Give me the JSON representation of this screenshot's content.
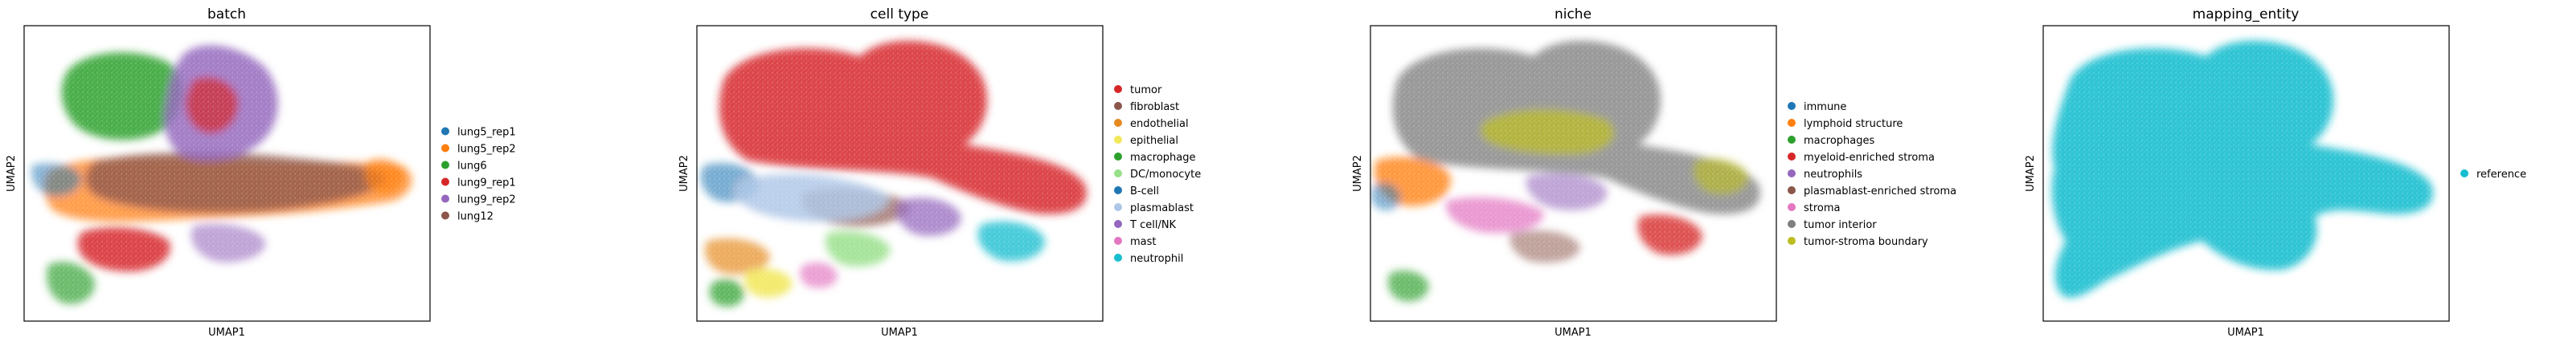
{
  "figure": {
    "panels": [
      {
        "title": "batch",
        "xlabel": "UMAP1",
        "ylabel": "UMAP2",
        "legend": [
          {
            "label": "lung5_rep1",
            "color": "#1f77b4"
          },
          {
            "label": "lung5_rep2",
            "color": "#ff7f0e"
          },
          {
            "label": "lung6",
            "color": "#2ca02c"
          },
          {
            "label": "lung9_rep1",
            "color": "#d62728"
          },
          {
            "label": "lung9_rep2",
            "color": "#9467bd"
          },
          {
            "label": "lung12",
            "color": "#8c564b"
          }
        ]
      },
      {
        "title": "cell type",
        "xlabel": "UMAP1",
        "ylabel": "UMAP2",
        "legend": [
          {
            "label": "tumor",
            "color": "#d62728"
          },
          {
            "label": "fibroblast",
            "color": "#8c564b"
          },
          {
            "label": "endothelial",
            "color": "#e6891f"
          },
          {
            "label": "epithelial",
            "color": "#f2e85c"
          },
          {
            "label": "macrophage",
            "color": "#2ca02c"
          },
          {
            "label": "DC/monocyte",
            "color": "#98df8a"
          },
          {
            "label": "B-cell",
            "color": "#1f77b4"
          },
          {
            "label": "plasmablast",
            "color": "#aec7e8"
          },
          {
            "label": "T cell/NK",
            "color": "#9467bd"
          },
          {
            "label": "mast",
            "color": "#e377c2"
          },
          {
            "label": "neutrophil",
            "color": "#17becf"
          }
        ]
      },
      {
        "title": "niche",
        "xlabel": "UMAP1",
        "ylabel": "UMAP2",
        "legend": [
          {
            "label": "immune",
            "color": "#1f77b4"
          },
          {
            "label": "lymphoid structure",
            "color": "#ff7f0e"
          },
          {
            "label": "macrophages",
            "color": "#2ca02c"
          },
          {
            "label": "myeloid-enriched stroma",
            "color": "#d62728"
          },
          {
            "label": "neutrophils",
            "color": "#9467bd"
          },
          {
            "label": "plasmablast-enriched stroma",
            "color": "#8c564b"
          },
          {
            "label": "stroma",
            "color": "#e377c2"
          },
          {
            "label": "tumor interior",
            "color": "#7f7f7f"
          },
          {
            "label": "tumor-stroma boundary",
            "color": "#bcbd22"
          }
        ]
      },
      {
        "title": "mapping_entity",
        "xlabel": "UMAP1",
        "ylabel": "UMAP2",
        "legend": [
          {
            "label": "reference",
            "color": "#17becf"
          }
        ]
      }
    ]
  },
  "chart_data": [
    {
      "type": "scatter",
      "title": "batch",
      "xlabel": "UMAP1",
      "ylabel": "UMAP2",
      "series": [
        {
          "name": "lung5_rep1",
          "color": "#1f77b4"
        },
        {
          "name": "lung5_rep2",
          "color": "#ff7f0e"
        },
        {
          "name": "lung6",
          "color": "#2ca02c"
        },
        {
          "name": "lung9_rep1",
          "color": "#d62728"
        },
        {
          "name": "lung9_rep2",
          "color": "#9467bd"
        },
        {
          "name": "lung12",
          "color": "#8c564b"
        }
      ],
      "legend_placement": "right",
      "grid": false
    },
    {
      "type": "scatter",
      "title": "cell type",
      "xlabel": "UMAP1",
      "ylabel": "UMAP2",
      "series": [
        {
          "name": "tumor",
          "color": "#d62728"
        },
        {
          "name": "fibroblast",
          "color": "#8c564b"
        },
        {
          "name": "endothelial",
          "color": "#e6891f"
        },
        {
          "name": "epithelial",
          "color": "#f2e85c"
        },
        {
          "name": "macrophage",
          "color": "#2ca02c"
        },
        {
          "name": "DC/monocyte",
          "color": "#98df8a"
        },
        {
          "name": "B-cell",
          "color": "#1f77b4"
        },
        {
          "name": "plasmablast",
          "color": "#aec7e8"
        },
        {
          "name": "T cell/NK",
          "color": "#9467bd"
        },
        {
          "name": "mast",
          "color": "#e377c2"
        },
        {
          "name": "neutrophil",
          "color": "#17becf"
        }
      ],
      "legend_placement": "right",
      "grid": false
    },
    {
      "type": "scatter",
      "title": "niche",
      "xlabel": "UMAP1",
      "ylabel": "UMAP2",
      "series": [
        {
          "name": "immune",
          "color": "#1f77b4"
        },
        {
          "name": "lymphoid structure",
          "color": "#ff7f0e"
        },
        {
          "name": "macrophages",
          "color": "#2ca02c"
        },
        {
          "name": "myeloid-enriched stroma",
          "color": "#d62728"
        },
        {
          "name": "neutrophils",
          "color": "#9467bd"
        },
        {
          "name": "plasmablast-enriched stroma",
          "color": "#8c564b"
        },
        {
          "name": "stroma",
          "color": "#e377c2"
        },
        {
          "name": "tumor interior",
          "color": "#7f7f7f"
        },
        {
          "name": "tumor-stroma boundary",
          "color": "#bcbd22"
        }
      ],
      "legend_placement": "right",
      "grid": false
    },
    {
      "type": "scatter",
      "title": "mapping_entity",
      "xlabel": "UMAP1",
      "ylabel": "UMAP2",
      "series": [
        {
          "name": "reference",
          "color": "#17becf"
        }
      ],
      "legend_placement": "right",
      "grid": false
    }
  ]
}
